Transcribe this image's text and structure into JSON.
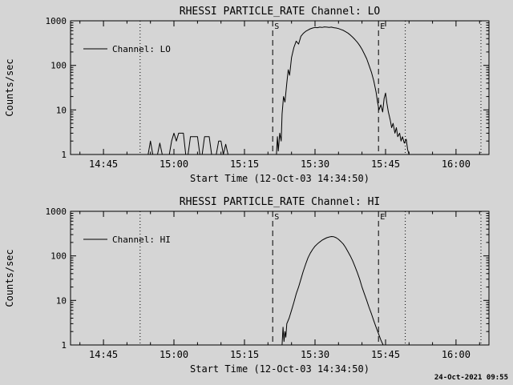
{
  "page": {
    "bg_color": "#d5d5d5",
    "fg_color": "#000000",
    "timestamp": "24-Oct-2021 09:55"
  },
  "chart_data": [
    {
      "type": "line",
      "name": "chart-lo",
      "title": "RHESSI PARTICLE_RATE Channel: LO",
      "xlabel": "Start Time (12-Oct-03 14:34:50)",
      "ylabel": "Counts/sec",
      "legend": "Channel: LO",
      "line_color": "#000000",
      "x_units": "minutes after 14:00 UT",
      "x_domain": [
        38,
        127
      ],
      "y_domain": [
        1,
        1000
      ],
      "y_scale": "log",
      "x_minor_step": 5,
      "x_ticks": [
        {
          "m": 45,
          "label": "14:45"
        },
        {
          "m": 60,
          "label": "15:00"
        },
        {
          "m": 75,
          "label": "15:15"
        },
        {
          "m": 90,
          "label": "15:30"
        },
        {
          "m": 105,
          "label": "15:45"
        },
        {
          "m": 120,
          "label": "16:00"
        }
      ],
      "y_ticks": [
        {
          "v": 1,
          "label": "1"
        },
        {
          "v": 10,
          "label": "10"
        },
        {
          "v": 100,
          "label": "100"
        },
        {
          "v": 1000,
          "label": "1000"
        }
      ],
      "vlines": [
        {
          "m": 52.8,
          "style": "dotted",
          "label": ""
        },
        {
          "m": 81.0,
          "style": "dashed",
          "label": "S"
        },
        {
          "m": 103.5,
          "style": "dashed",
          "label": "E"
        },
        {
          "m": 109.2,
          "style": "dotted",
          "label": ""
        },
        {
          "m": 125.3,
          "style": "dotted",
          "label": ""
        }
      ],
      "series": [
        {
          "name": "Channel: LO",
          "segments": [
            [
              [
                54.5,
                1
              ],
              [
                55,
                2
              ],
              [
                55.5,
                1
              ]
            ],
            [
              [
                56.5,
                1
              ],
              [
                57,
                1.8
              ],
              [
                57.5,
                1
              ]
            ],
            [
              [
                59,
                1
              ],
              [
                59.5,
                2
              ],
              [
                60,
                3
              ],
              [
                60.5,
                2
              ],
              [
                61,
                3
              ],
              [
                61.5,
                3
              ],
              [
                62,
                3
              ],
              [
                62.5,
                1
              ]
            ],
            [
              [
                63,
                1
              ],
              [
                63.5,
                2.5
              ],
              [
                64,
                2.5
              ],
              [
                64.5,
                2.5
              ],
              [
                65,
                2.5
              ],
              [
                65.5,
                1
              ]
            ],
            [
              [
                66,
                1
              ],
              [
                66.5,
                2.5
              ],
              [
                67,
                2.5
              ],
              [
                67.5,
                2.5
              ],
              [
                68,
                1
              ]
            ],
            [
              [
                69,
                1
              ],
              [
                69.5,
                2
              ],
              [
                70,
                2
              ],
              [
                70.5,
                1
              ],
              [
                71,
                1.7
              ],
              [
                71.5,
                1
              ]
            ],
            [
              [
                81.8,
                1
              ],
              [
                82,
                2.5
              ],
              [
                82.2,
                1.2
              ],
              [
                82.5,
                3
              ],
              [
                82.8,
                2
              ],
              [
                83,
                8
              ],
              [
                83.3,
                20
              ],
              [
                83.6,
                15
              ],
              [
                84,
                40
              ],
              [
                84.3,
                80
              ],
              [
                84.6,
                60
              ],
              [
                85,
                150
              ],
              [
                85.5,
                250
              ],
              [
                86,
                350
              ],
              [
                86.5,
                300
              ],
              [
                87,
                450
              ],
              [
                87.5,
                520
              ],
              [
                88,
                580
              ],
              [
                88.5,
                620
              ],
              [
                89,
                660
              ],
              [
                89.5,
                690
              ],
              [
                90,
                710
              ],
              [
                90.5,
                700
              ],
              [
                91,
                720
              ],
              [
                91.5,
                710
              ],
              [
                92,
                730
              ],
              [
                92.5,
                720
              ],
              [
                93,
                710
              ],
              [
                93.5,
                720
              ],
              [
                94,
                700
              ],
              [
                94.5,
                690
              ],
              [
                95,
                670
              ],
              [
                95.5,
                640
              ],
              [
                96,
                610
              ],
              [
                96.5,
                570
              ],
              [
                97,
                530
              ],
              [
                97.5,
                480
              ],
              [
                98,
                430
              ],
              [
                98.5,
                380
              ],
              [
                99,
                330
              ],
              [
                99.5,
                280
              ],
              [
                100,
                230
              ],
              [
                100.5,
                180
              ],
              [
                101,
                140
              ],
              [
                101.5,
                100
              ],
              [
                102,
                70
              ],
              [
                102.5,
                45
              ],
              [
                103,
                25
              ],
              [
                103.3,
                15
              ],
              [
                103.6,
                10
              ],
              [
                104,
                13
              ],
              [
                104.4,
                9
              ],
              [
                104.7,
                18
              ],
              [
                105,
                24
              ],
              [
                105.3,
                14
              ],
              [
                105.6,
                9
              ],
              [
                106,
                6
              ],
              [
                106.3,
                4
              ],
              [
                106.6,
                5
              ],
              [
                107,
                3
              ],
              [
                107.3,
                4
              ],
              [
                107.6,
                2.5
              ],
              [
                108,
                3
              ],
              [
                108.3,
                2
              ],
              [
                108.6,
                2.5
              ],
              [
                109,
                1.8
              ],
              [
                109.4,
                2.2
              ],
              [
                109.7,
                1.3
              ],
              [
                110,
                1
              ]
            ]
          ]
        }
      ]
    },
    {
      "type": "line",
      "name": "chart-hi",
      "title": "RHESSI PARTICLE_RATE Channel: HI",
      "xlabel": "Start Time (12-Oct-03 14:34:50)",
      "ylabel": "Counts/sec",
      "legend": "Channel: HI",
      "line_color": "#000000",
      "x_units": "minutes after 14:00 UT",
      "x_domain": [
        38,
        127
      ],
      "y_domain": [
        1,
        1000
      ],
      "y_scale": "log",
      "x_minor_step": 5,
      "x_ticks": [
        {
          "m": 45,
          "label": "14:45"
        },
        {
          "m": 60,
          "label": "15:00"
        },
        {
          "m": 75,
          "label": "15:15"
        },
        {
          "m": 90,
          "label": "15:30"
        },
        {
          "m": 105,
          "label": "15:45"
        },
        {
          "m": 120,
          "label": "16:00"
        }
      ],
      "y_ticks": [
        {
          "v": 1,
          "label": "1"
        },
        {
          "v": 10,
          "label": "10"
        },
        {
          "v": 100,
          "label": "100"
        },
        {
          "v": 1000,
          "label": "1000"
        }
      ],
      "vlines": [
        {
          "m": 52.8,
          "style": "dotted",
          "label": ""
        },
        {
          "m": 81.0,
          "style": "dashed",
          "label": "S"
        },
        {
          "m": 103.5,
          "style": "dashed",
          "label": "E"
        },
        {
          "m": 109.2,
          "style": "dotted",
          "label": ""
        },
        {
          "m": 125.3,
          "style": "dotted",
          "label": ""
        }
      ],
      "series": [
        {
          "name": "Channel: HI",
          "segments": [
            [
              [
                83,
                1
              ],
              [
                83.2,
                2.5
              ],
              [
                83.4,
                1.2
              ],
              [
                83.6,
                2
              ],
              [
                83.8,
                1.5
              ],
              [
                84,
                3
              ],
              [
                84.5,
                4
              ],
              [
                85,
                6
              ],
              [
                85.5,
                9
              ],
              [
                86,
                14
              ],
              [
                86.5,
                20
              ],
              [
                87,
                30
              ],
              [
                87.5,
                45
              ],
              [
                88,
                65
              ],
              [
                88.5,
                90
              ],
              [
                89,
                115
              ],
              [
                89.5,
                140
              ],
              [
                90,
                165
              ],
              [
                90.5,
                185
              ],
              [
                91,
                205
              ],
              [
                91.5,
                225
              ],
              [
                92,
                240
              ],
              [
                92.5,
                255
              ],
              [
                93,
                265
              ],
              [
                93.5,
                272
              ],
              [
                94,
                268
              ],
              [
                94.5,
                255
              ],
              [
                95,
                235
              ],
              [
                95.5,
                210
              ],
              [
                96,
                185
              ],
              [
                96.5,
                155
              ],
              [
                97,
                125
              ],
              [
                97.5,
                100
              ],
              [
                98,
                78
              ],
              [
                98.5,
                58
              ],
              [
                99,
                42
              ],
              [
                99.5,
                30
              ],
              [
                100,
                20
              ],
              [
                100.5,
                14
              ],
              [
                101,
                10
              ],
              [
                101.5,
                7
              ],
              [
                102,
                5
              ],
              [
                102.5,
                3.5
              ],
              [
                103,
                2.5
              ],
              [
                103.5,
                1.8
              ],
              [
                104,
                1.3
              ],
              [
                104.5,
                1
              ]
            ]
          ]
        }
      ]
    }
  ]
}
